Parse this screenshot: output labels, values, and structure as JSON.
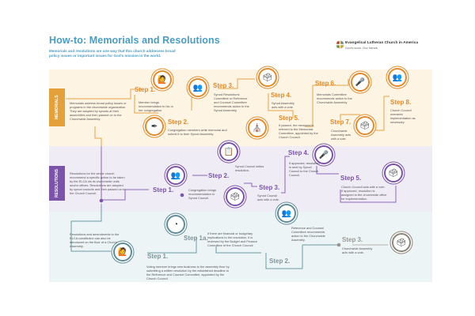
{
  "header": {
    "title": "How-to: Memorials and Resolutions",
    "subtitle": "Memorials and resolutions are one way that this church addresses broad policy issues or important issues for God's mission in the world.",
    "logo_name": "Evangelical Lutheran Church in America",
    "logo_tagline": "God's work. Our hands."
  },
  "colors": {
    "memorials": "#e08b2d",
    "resolutions": "#7b54aa",
    "floor": "#5f8c98",
    "title": "#4b9cc1"
  },
  "memorials": {
    "label": "MEMORIALS",
    "intro": "Memorials address broad policy issues or programs in the churchwide organization. They are adopted by synods at their assemblies and then passed on to the Churchwide Assembly.",
    "steps": [
      {
        "label": "Step 1.",
        "text": "Member brings recommendation to his or her congregation.",
        "icon": "speaker-podium-icon"
      },
      {
        "label": "Step 2.",
        "text": "Congregation members write memorial and submit it to their Synod Assembly.",
        "icon": "pen-nib-icon"
      },
      {
        "label": "Step 3.",
        "text": "Synod Resolutions Committee or Reference and Counsel Committee recommends action to the Synod Assembly.",
        "icon": "group-icon"
      },
      {
        "label": "Step 4.",
        "text": "Synod Assembly acts with a vote.",
        "icon": "ballot-box-icon"
      },
      {
        "label": "Step 5.",
        "text": "If passed, the memorial is referred to the Memorials Committee, appointed by the Church Council.",
        "icon": "church-icon"
      },
      {
        "label": "Step 6.",
        "text": "Memorials Committee recommends action to the Churchwide Assembly.",
        "icon": "podium-icon"
      },
      {
        "label": "Step 7.",
        "text": "Churchwide Assembly acts with a vote.",
        "icon": "ballot-box-icon"
      },
      {
        "label": "Step 8.",
        "text": "Church Council oversees implementation as necessary.",
        "icon": "group-icon"
      }
    ]
  },
  "resolutions": {
    "label": "RESOLUTIONS",
    "intro": "Resolutions for the whole church recommend a specific action to be taken by the ELCA via its churchwide units and/or offices. Resolutions are adopted by synod councils and then passed on to the Church Council.",
    "steps": [
      {
        "label": "Step 1.",
        "text": "Congregation brings recommendation to Synod Council.",
        "icon": "group-icon"
      },
      {
        "label": "Step 2.",
        "text": "Synod Council writes resolution.",
        "icon": "checklist-icon"
      },
      {
        "label": "Step 3.",
        "text": "Synod Council acts with a vote.",
        "icon": "ballot-box-icon"
      },
      {
        "label": "Step 4.",
        "text": "If approved, resolution is sent by Synod Council to the Church Council.",
        "icon": "podium-icon"
      },
      {
        "label": "Step 5.",
        "text": "Church Council acts with a vote. If approved, resolution is assigned to the churchwide office for implementation.",
        "icon": "ballot-box-icon"
      }
    ]
  },
  "floor": {
    "intro": "Resolutions and amendments to the ELCA constitution can also be introduced on the floor of a Churchwide Assembly.",
    "steps": [
      {
        "label": "Step 1.",
        "text": "Voting member brings new business to the assembly floor by submitting a written resolution by the established deadline to the Reference and Counsel Committee, appointed by the Church Council.",
        "icon": "speaker-podium-icon"
      },
      {
        "label": "Step 1a.",
        "text": "If there are financial or budgetary implications to the resolution, it is reviewed by the Budget and Finance Committee of the Church Council.",
        "icon": "pie-chart-icon"
      },
      {
        "label": "Step 2.",
        "text": "Reference and Counsel Committee recommends action to the Churchwide Assembly.",
        "icon": "group-icon"
      },
      {
        "label": "Step 3.",
        "text": "Churchwide Assembly acts with a vote.",
        "icon": "ballot-box-icon"
      }
    ]
  }
}
